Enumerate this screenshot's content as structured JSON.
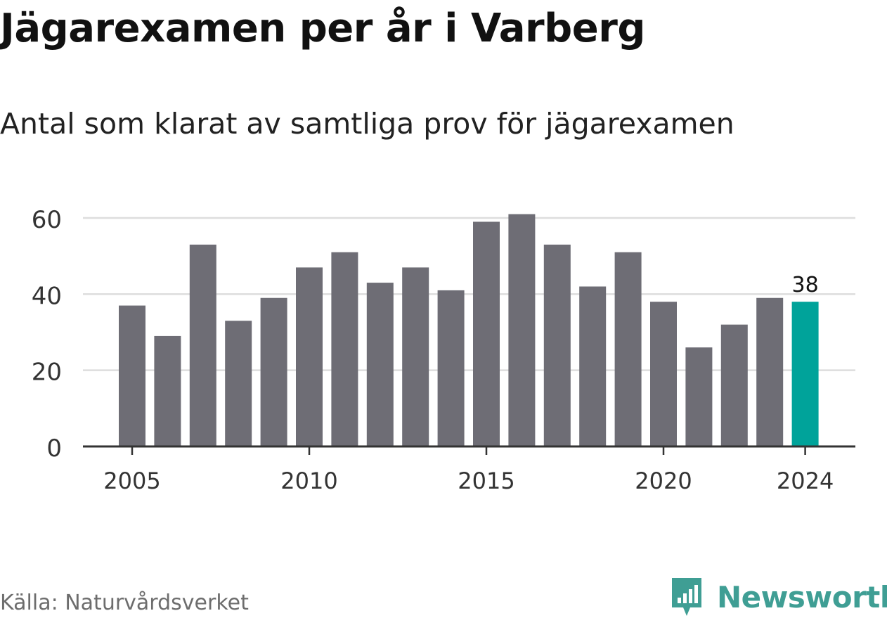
{
  "title": "Jägarexamen per år i Varberg",
  "subtitle": "Antal som klarat av samtliga prov för jägarexamen",
  "source": "Källa: Naturvårdsverket",
  "brand": {
    "name": "Newsworthy",
    "icon": "newsworthy-logo-icon",
    "color": "#3f9e94"
  },
  "colors": {
    "bar": "#6e6d75",
    "highlight": "#00a39a",
    "grid": "#dddddd",
    "axis": "#333333"
  },
  "chart_data": {
    "type": "bar",
    "title": "Jägarexamen per år i Varberg",
    "subtitle": "Antal som klarat av samtliga prov för jägarexamen",
    "xlabel": "",
    "ylabel": "",
    "ylim": [
      0,
      60
    ],
    "yticks": [
      0,
      20,
      40,
      60
    ],
    "xtick_labels": [
      "2005",
      "2010",
      "2015",
      "2020",
      "2024"
    ],
    "grid": true,
    "categories": [
      "2005",
      "2006",
      "2007",
      "2008",
      "2009",
      "2010",
      "2011",
      "2012",
      "2013",
      "2014",
      "2015",
      "2016",
      "2017",
      "2018",
      "2019",
      "2020",
      "2021",
      "2022",
      "2023",
      "2024"
    ],
    "values": [
      37,
      29,
      53,
      33,
      39,
      47,
      51,
      43,
      47,
      41,
      59,
      61,
      53,
      42,
      51,
      38,
      26,
      32,
      39,
      38
    ],
    "highlight": {
      "category": "2024",
      "label": "38"
    }
  }
}
